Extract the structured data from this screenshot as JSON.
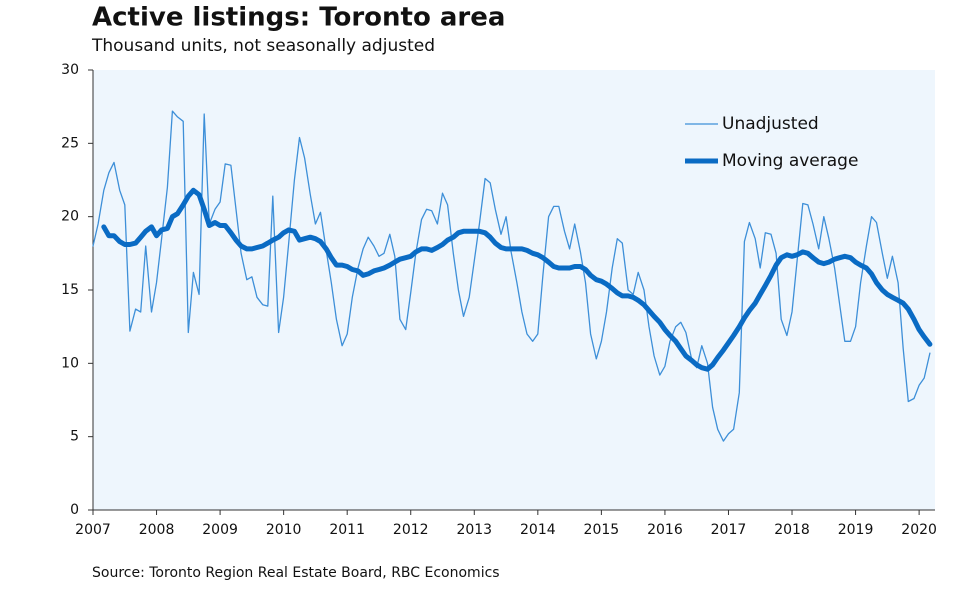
{
  "chart_data": {
    "type": "line",
    "title": "Active listings: Toronto area",
    "subtitle": "Thousand units, not seasonally adjusted",
    "source": "Source: Toronto Region Real Estate Board, RBC Economics",
    "x": [
      2007,
      2007.08,
      2007.17,
      2007.25,
      2007.33,
      2007.42,
      2007.5,
      2007.58,
      2007.67,
      2007.75,
      2007.83,
      2007.92,
      2008,
      2008.08,
      2008.17,
      2008.25,
      2008.33,
      2008.42,
      2008.5,
      2008.58,
      2008.67,
      2008.75,
      2008.83,
      2008.92,
      2009,
      2009.08,
      2009.17,
      2009.25,
      2009.33,
      2009.42,
      2009.5,
      2009.58,
      2009.67,
      2009.75,
      2009.83,
      2009.92,
      2010,
      2010.08,
      2010.17,
      2010.25,
      2010.33,
      2010.42,
      2010.5,
      2010.58,
      2010.67,
      2010.75,
      2010.83,
      2010.92,
      2011,
      2011.08,
      2011.17,
      2011.25,
      2011.33,
      2011.42,
      2011.5,
      2011.58,
      2011.67,
      2011.75,
      2011.83,
      2011.92,
      2012,
      2012.08,
      2012.17,
      2012.25,
      2012.33,
      2012.42,
      2012.5,
      2012.58,
      2012.67,
      2012.75,
      2012.83,
      2012.92,
      2013,
      2013.08,
      2013.17,
      2013.25,
      2013.33,
      2013.42,
      2013.5,
      2013.58,
      2013.67,
      2013.75,
      2013.83,
      2013.92,
      2014,
      2014.08,
      2014.17,
      2014.25,
      2014.33,
      2014.42,
      2014.5,
      2014.58,
      2014.67,
      2014.75,
      2014.83,
      2014.92,
      2015,
      2015.08,
      2015.17,
      2015.25,
      2015.33,
      2015.42,
      2015.5,
      2015.58,
      2015.67,
      2015.75,
      2015.83,
      2015.92,
      2016,
      2016.08,
      2016.17,
      2016.25,
      2016.33,
      2016.42,
      2016.5,
      2016.58,
      2016.67,
      2016.75,
      2016.83,
      2016.92,
      2017,
      2017.08,
      2017.17,
      2017.25,
      2017.33,
      2017.42,
      2017.5,
      2017.58,
      2017.67,
      2017.75,
      2017.83,
      2017.92,
      2018,
      2018.08,
      2018.17,
      2018.25,
      2018.33,
      2018.42,
      2018.5,
      2018.58,
      2018.67,
      2018.75,
      2018.83,
      2018.92,
      2019,
      2019.08,
      2019.17,
      2019.25,
      2019.33,
      2019.42,
      2019.5,
      2019.58,
      2019.67,
      2019.75,
      2019.83,
      2019.92,
      2020,
      2020.08,
      2020.17
    ],
    "series": [
      {
        "name": "Unadjusted",
        "color": "#3d8fd8",
        "values": [
          18.0,
          19.5,
          21.8,
          23.0,
          23.7,
          21.8,
          20.8,
          12.2,
          13.7,
          13.5,
          18.0,
          13.5,
          15.5,
          18.5,
          22.0,
          27.2,
          26.8,
          26.5,
          12.1,
          16.2,
          14.7,
          27.0,
          19.5,
          20.5,
          21.0,
          23.6,
          23.5,
          20.5,
          17.5,
          15.7,
          15.9,
          14.5,
          14.0,
          13.9,
          21.4,
          12.1,
          14.5,
          18.2,
          22.5,
          25.4,
          24.0,
          21.5,
          19.5,
          20.3,
          17.7,
          15.5,
          13.0,
          11.2,
          12.0,
          14.5,
          16.5,
          17.8,
          18.6,
          18.0,
          17.3,
          17.5,
          18.8,
          17.3,
          13.0,
          12.3,
          14.8,
          17.5,
          19.8,
          20.5,
          20.4,
          19.5,
          21.6,
          20.8,
          17.5,
          15.0,
          13.2,
          14.5,
          17.0,
          19.5,
          22.6,
          22.3,
          20.5,
          18.8,
          20.0,
          17.6,
          15.5,
          13.5,
          12.0,
          11.5,
          12.0,
          16.0,
          20.0,
          20.7,
          20.7,
          19.0,
          17.8,
          19.5,
          17.6,
          15.5,
          12.0,
          10.3,
          11.5,
          13.5,
          16.5,
          18.5,
          18.2,
          15.0,
          14.7,
          16.2,
          15.0,
          12.5,
          10.5,
          9.2,
          9.8,
          11.5,
          12.5,
          12.8,
          12.1,
          10.3,
          9.7,
          11.2,
          10.0,
          7.0,
          5.5,
          4.7,
          5.2,
          5.5,
          8.0,
          18.3,
          19.6,
          18.5,
          16.5,
          18.9,
          18.8,
          17.5,
          13.0,
          11.9,
          13.5,
          17.0,
          20.9,
          20.8,
          19.5,
          17.8,
          20.0,
          18.5,
          16.5,
          14.0,
          11.5,
          11.5,
          12.5,
          15.5,
          18.0,
          20.0,
          19.6,
          17.5,
          15.8,
          17.3,
          15.5,
          11.0,
          7.4,
          7.6,
          8.5,
          9.0,
          10.7
        ]
      },
      {
        "name": "Moving average",
        "color": "#0a6bc4",
        "values": [
          null,
          null,
          19.3,
          18.7,
          18.7,
          18.3,
          18.1,
          18.1,
          18.2,
          18.6,
          19.0,
          19.3,
          18.7,
          19.1,
          19.2,
          20.0,
          20.2,
          20.8,
          21.4,
          21.8,
          21.5,
          20.5,
          19.4,
          19.6,
          19.4,
          19.4,
          18.9,
          18.4,
          18.0,
          17.8,
          17.8,
          17.9,
          18.0,
          18.2,
          18.4,
          18.6,
          18.9,
          19.1,
          19.0,
          18.4,
          18.5,
          18.6,
          18.5,
          18.3,
          17.8,
          17.2,
          16.7,
          16.7,
          16.6,
          16.4,
          16.3,
          16.0,
          16.1,
          16.3,
          16.4,
          16.5,
          16.7,
          16.9,
          17.1,
          17.2,
          17.3,
          17.6,
          17.8,
          17.8,
          17.7,
          17.9,
          18.1,
          18.4,
          18.6,
          18.9,
          19.0,
          19.0,
          19.0,
          19.0,
          18.9,
          18.6,
          18.2,
          17.9,
          17.8,
          17.8,
          17.8,
          17.8,
          17.7,
          17.5,
          17.4,
          17.2,
          16.9,
          16.6,
          16.5,
          16.5,
          16.5,
          16.6,
          16.6,
          16.4,
          16.0,
          15.7,
          15.6,
          15.4,
          15.1,
          14.8,
          14.6,
          14.6,
          14.5,
          14.3,
          14.0,
          13.6,
          13.2,
          12.8,
          12.3,
          11.9,
          11.5,
          11.0,
          10.5,
          10.2,
          9.9,
          9.7,
          9.6,
          9.9,
          10.4,
          10.9,
          11.4,
          11.9,
          12.5,
          13.1,
          13.6,
          14.1,
          14.7,
          15.3,
          16.0,
          16.7,
          17.2,
          17.4,
          17.3,
          17.4,
          17.6,
          17.5,
          17.2,
          16.9,
          16.8,
          16.9,
          17.1,
          17.2,
          17.3,
          17.2,
          16.9,
          16.7,
          16.5,
          16.1,
          15.5,
          15.0,
          14.7,
          14.5,
          14.3,
          14.1,
          13.7,
          13.0,
          12.3,
          11.8,
          11.3
        ]
      }
    ],
    "xlim": [
      2007,
      2020.25
    ],
    "xticks": [
      2007,
      2008,
      2009,
      2010,
      2011,
      2012,
      2013,
      2014,
      2015,
      2016,
      2017,
      2018,
      2019,
      2020
    ],
    "ylim": [
      0,
      30
    ],
    "yticks": [
      0,
      5,
      10,
      15,
      20,
      25,
      30
    ],
    "legend": "top-right",
    "grid": false
  }
}
